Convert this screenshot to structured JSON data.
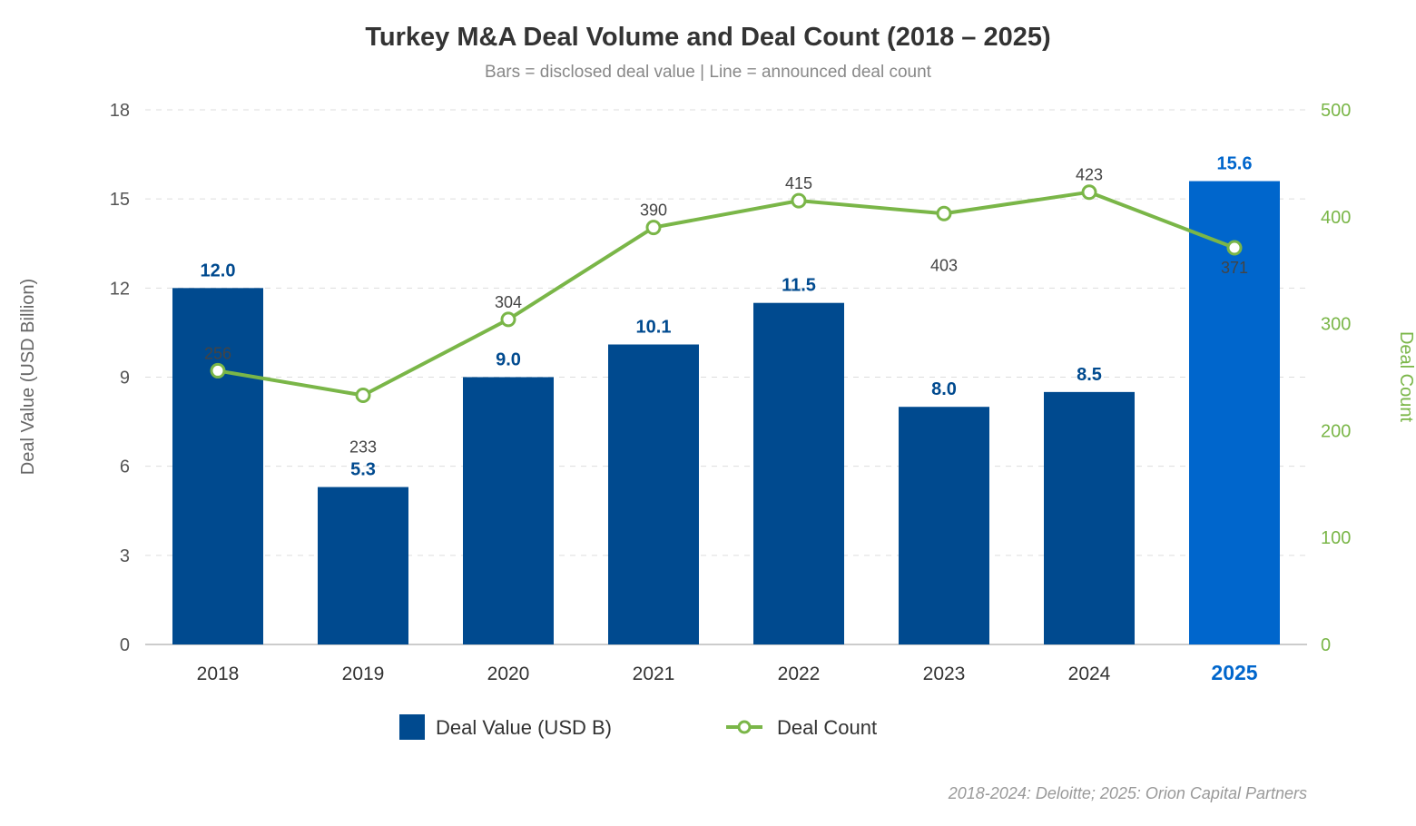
{
  "chart_data": {
    "type": "bar",
    "title": "Turkey M&A Deal Volume and Deal Count (2018 – 2025)",
    "subtitle": "Bars = disclosed deal value | Line = announced deal count",
    "categories": [
      "2018",
      "2019",
      "2020",
      "2021",
      "2022",
      "2023",
      "2024",
      "2025"
    ],
    "highlight_category": "2025",
    "series": [
      {
        "name": "Deal Value (USD B)",
        "type": "bar",
        "axis": "left",
        "values": [
          12.0,
          5.3,
          9.0,
          10.1,
          11.5,
          8.0,
          8.5,
          15.6
        ],
        "labels": [
          "12.0",
          "5.3",
          "9.0",
          "10.1",
          "11.5",
          "8.0",
          "8.5",
          "15.6"
        ],
        "color": "#004a8f",
        "highlight_color": "#0066cc"
      },
      {
        "name": "Deal Count",
        "type": "line",
        "axis": "right",
        "values": [
          256,
          233,
          304,
          390,
          415,
          403,
          423,
          371
        ],
        "labels": [
          "256",
          "233",
          "304",
          "390",
          "415",
          "403",
          "423",
          "371"
        ],
        "color": "#7ab648"
      }
    ],
    "y_left": {
      "label": "Deal Value (USD Billion)",
      "range": [
        0,
        18
      ],
      "ticks": [
        0,
        3,
        6,
        9,
        12,
        15,
        18
      ],
      "tick_labels": [
        "0",
        "3",
        "6",
        "9",
        "12",
        "15",
        "18"
      ]
    },
    "y_right": {
      "label": "Deal Count",
      "range": [
        0,
        500
      ],
      "ticks": [
        0,
        100,
        200,
        300,
        400,
        500
      ],
      "tick_labels": [
        "0",
        "100",
        "200",
        "300",
        "400",
        "500"
      ]
    },
    "grid": true,
    "legend_placement": "bottom",
    "source": "2018-2024: Deloitte; 2025: Orion Capital Partners"
  }
}
